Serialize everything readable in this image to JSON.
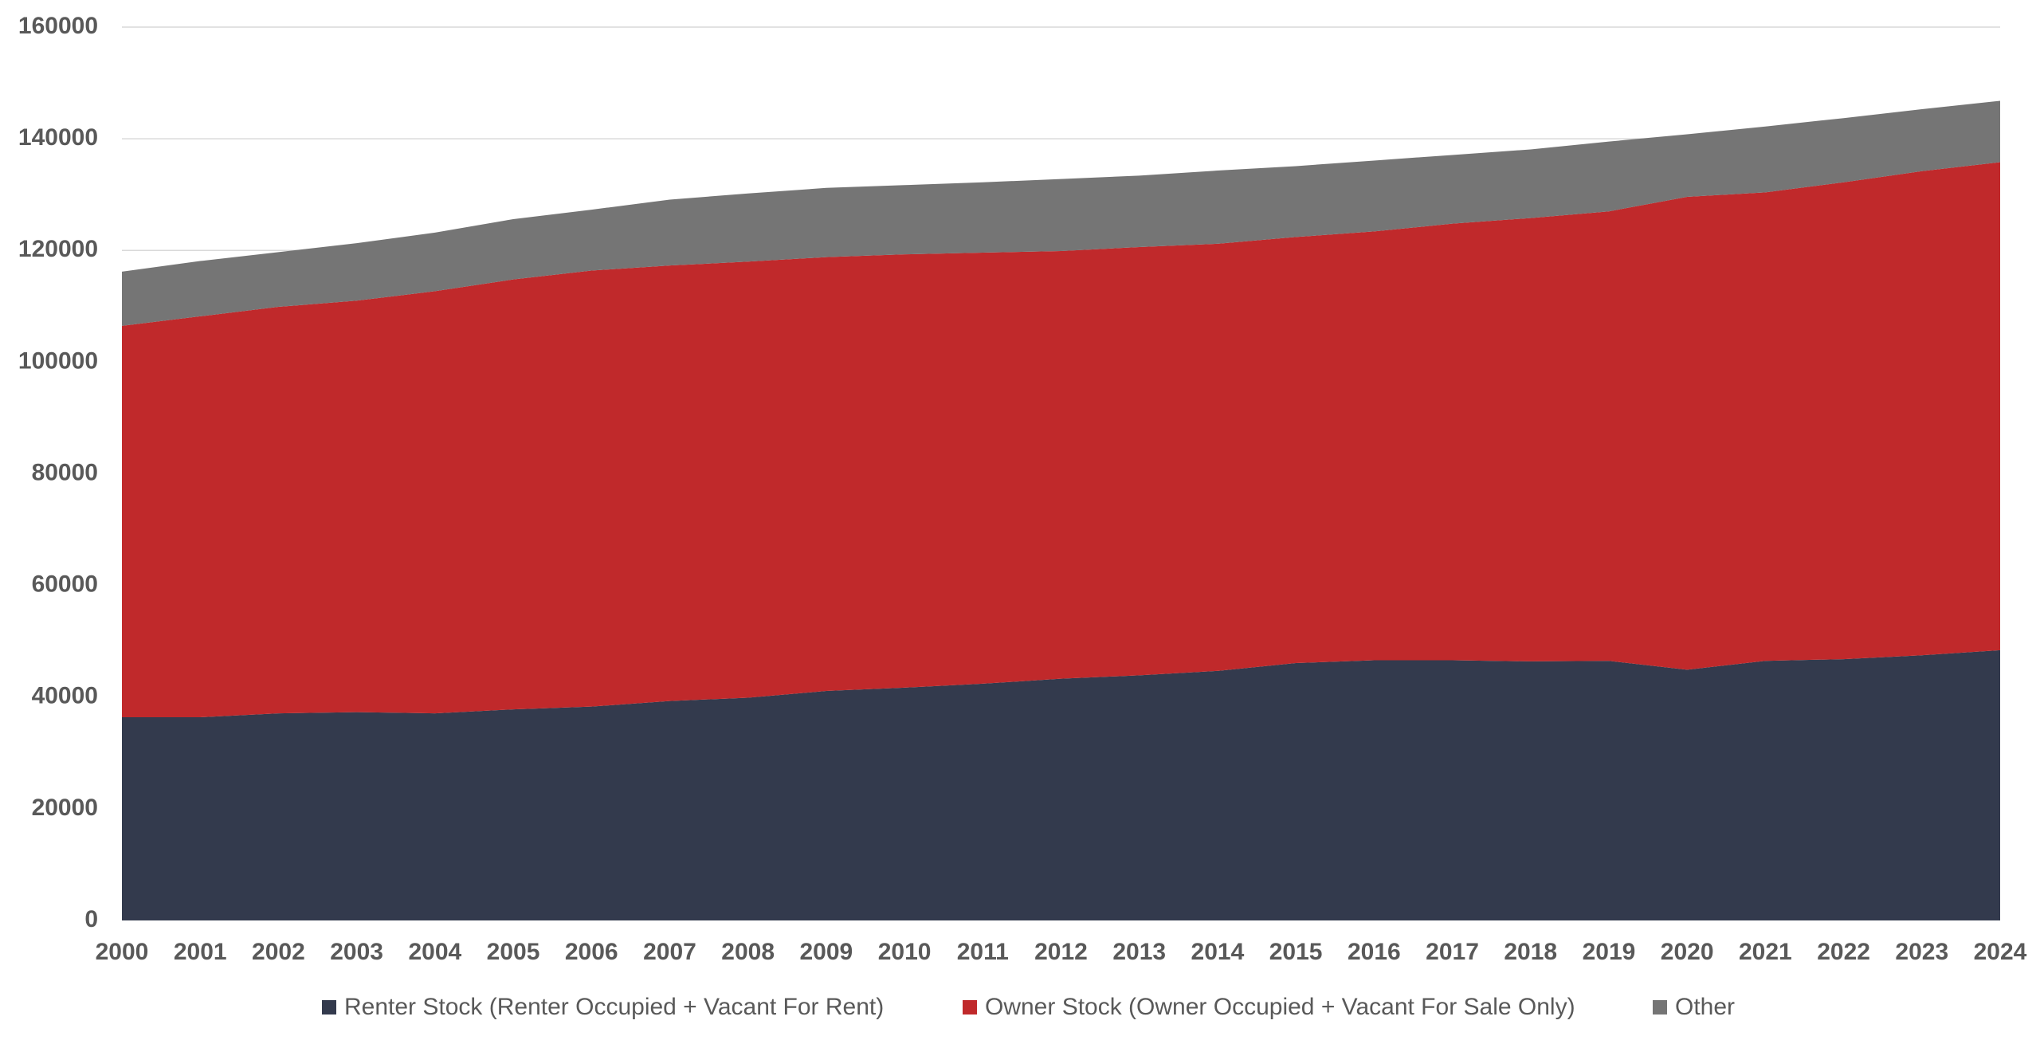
{
  "chart_data": {
    "type": "area",
    "stacked": true,
    "title": "",
    "xlabel": "",
    "ylabel": "",
    "x": [
      "2000",
      "2001",
      "2002",
      "2003",
      "2004",
      "2005",
      "2006",
      "2007",
      "2008",
      "2009",
      "2010",
      "2011",
      "2012",
      "2013",
      "2014",
      "2015",
      "2016",
      "2017",
      "2018",
      "2019",
      "2020",
      "2021",
      "2022",
      "2023",
      "2024"
    ],
    "ylim": [
      0,
      160000
    ],
    "yticks": [
      0,
      20000,
      40000,
      60000,
      80000,
      100000,
      120000,
      140000,
      160000
    ],
    "grid": true,
    "legend_position": "bottom",
    "series": [
      {
        "name": "Renter Stock (Renter Occupied + Vacant For Rent)",
        "color": "#333A4D",
        "values": [
          36400,
          36400,
          37100,
          37300,
          37100,
          37800,
          38300,
          39300,
          39900,
          41100,
          41700,
          42400,
          43300,
          43900,
          44700,
          46100,
          46600,
          46600,
          46400,
          46500,
          44900,
          46500,
          46800,
          47500,
          48400
        ]
      },
      {
        "name": "Owner Stock (Owner Occupied + Vacant For Sale Only)",
        "color": "#C0292B",
        "values": [
          70100,
          71800,
          72800,
          73700,
          75600,
          77000,
          78100,
          78000,
          78100,
          77700,
          77600,
          77200,
          76600,
          76700,
          76500,
          76300,
          76800,
          78200,
          79400,
          80500,
          84700,
          83900,
          85400,
          86700,
          87400
        ]
      },
      {
        "name": "Other",
        "color": "#757575",
        "values": [
          9700,
          9900,
          9800,
          10300,
          10500,
          10800,
          10900,
          11800,
          12200,
          12400,
          12400,
          12600,
          12900,
          12800,
          13100,
          12700,
          12700,
          12300,
          12300,
          12500,
          11200,
          11800,
          11500,
          11100,
          11000
        ]
      }
    ],
    "colors": {
      "tick_label": "#595959",
      "gridline": "#D9D9D9",
      "background": "#FFFFFF"
    }
  }
}
